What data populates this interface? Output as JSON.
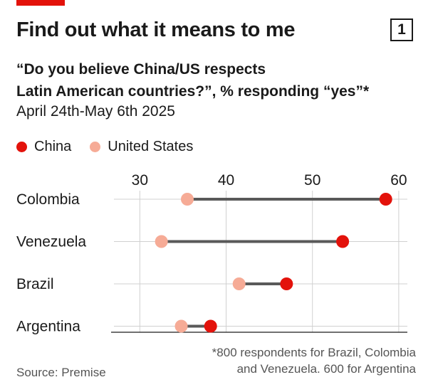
{
  "header": {
    "title": "Find out what it means to me",
    "chart_number": "1",
    "subtitle_line1": "“Do you believe China/US respects",
    "subtitle_line2": "Latin American countries?”, % responding “yes”*",
    "dates": "April 24th-May 6th 2025"
  },
  "legend": {
    "china_label": "China",
    "us_label": "United States"
  },
  "footer": {
    "footnote_line1": "*800 respondents for Brazil, Colombia",
    "footnote_line2": "and Venezuela. 600 for Argentina",
    "source": "Source: Premise"
  },
  "colors": {
    "china": "#e3120b",
    "us": "#f6ab96",
    "connector": "#595959",
    "grid": "#d0d0d0",
    "accent": "#e3120b"
  },
  "chart_data": {
    "type": "dot",
    "categories": [
      "Colombia",
      "Venezuela",
      "Brazil",
      "Argentina"
    ],
    "series": [
      {
        "name": "China",
        "values": [
          58.5,
          53.5,
          47,
          38.2
        ]
      },
      {
        "name": "United States",
        "values": [
          35.5,
          32.5,
          41.5,
          34.8
        ]
      }
    ],
    "xlim": [
      27,
      61
    ],
    "xticks": [
      30,
      40,
      50,
      60
    ],
    "legend_position": "top-left",
    "grid": true
  }
}
